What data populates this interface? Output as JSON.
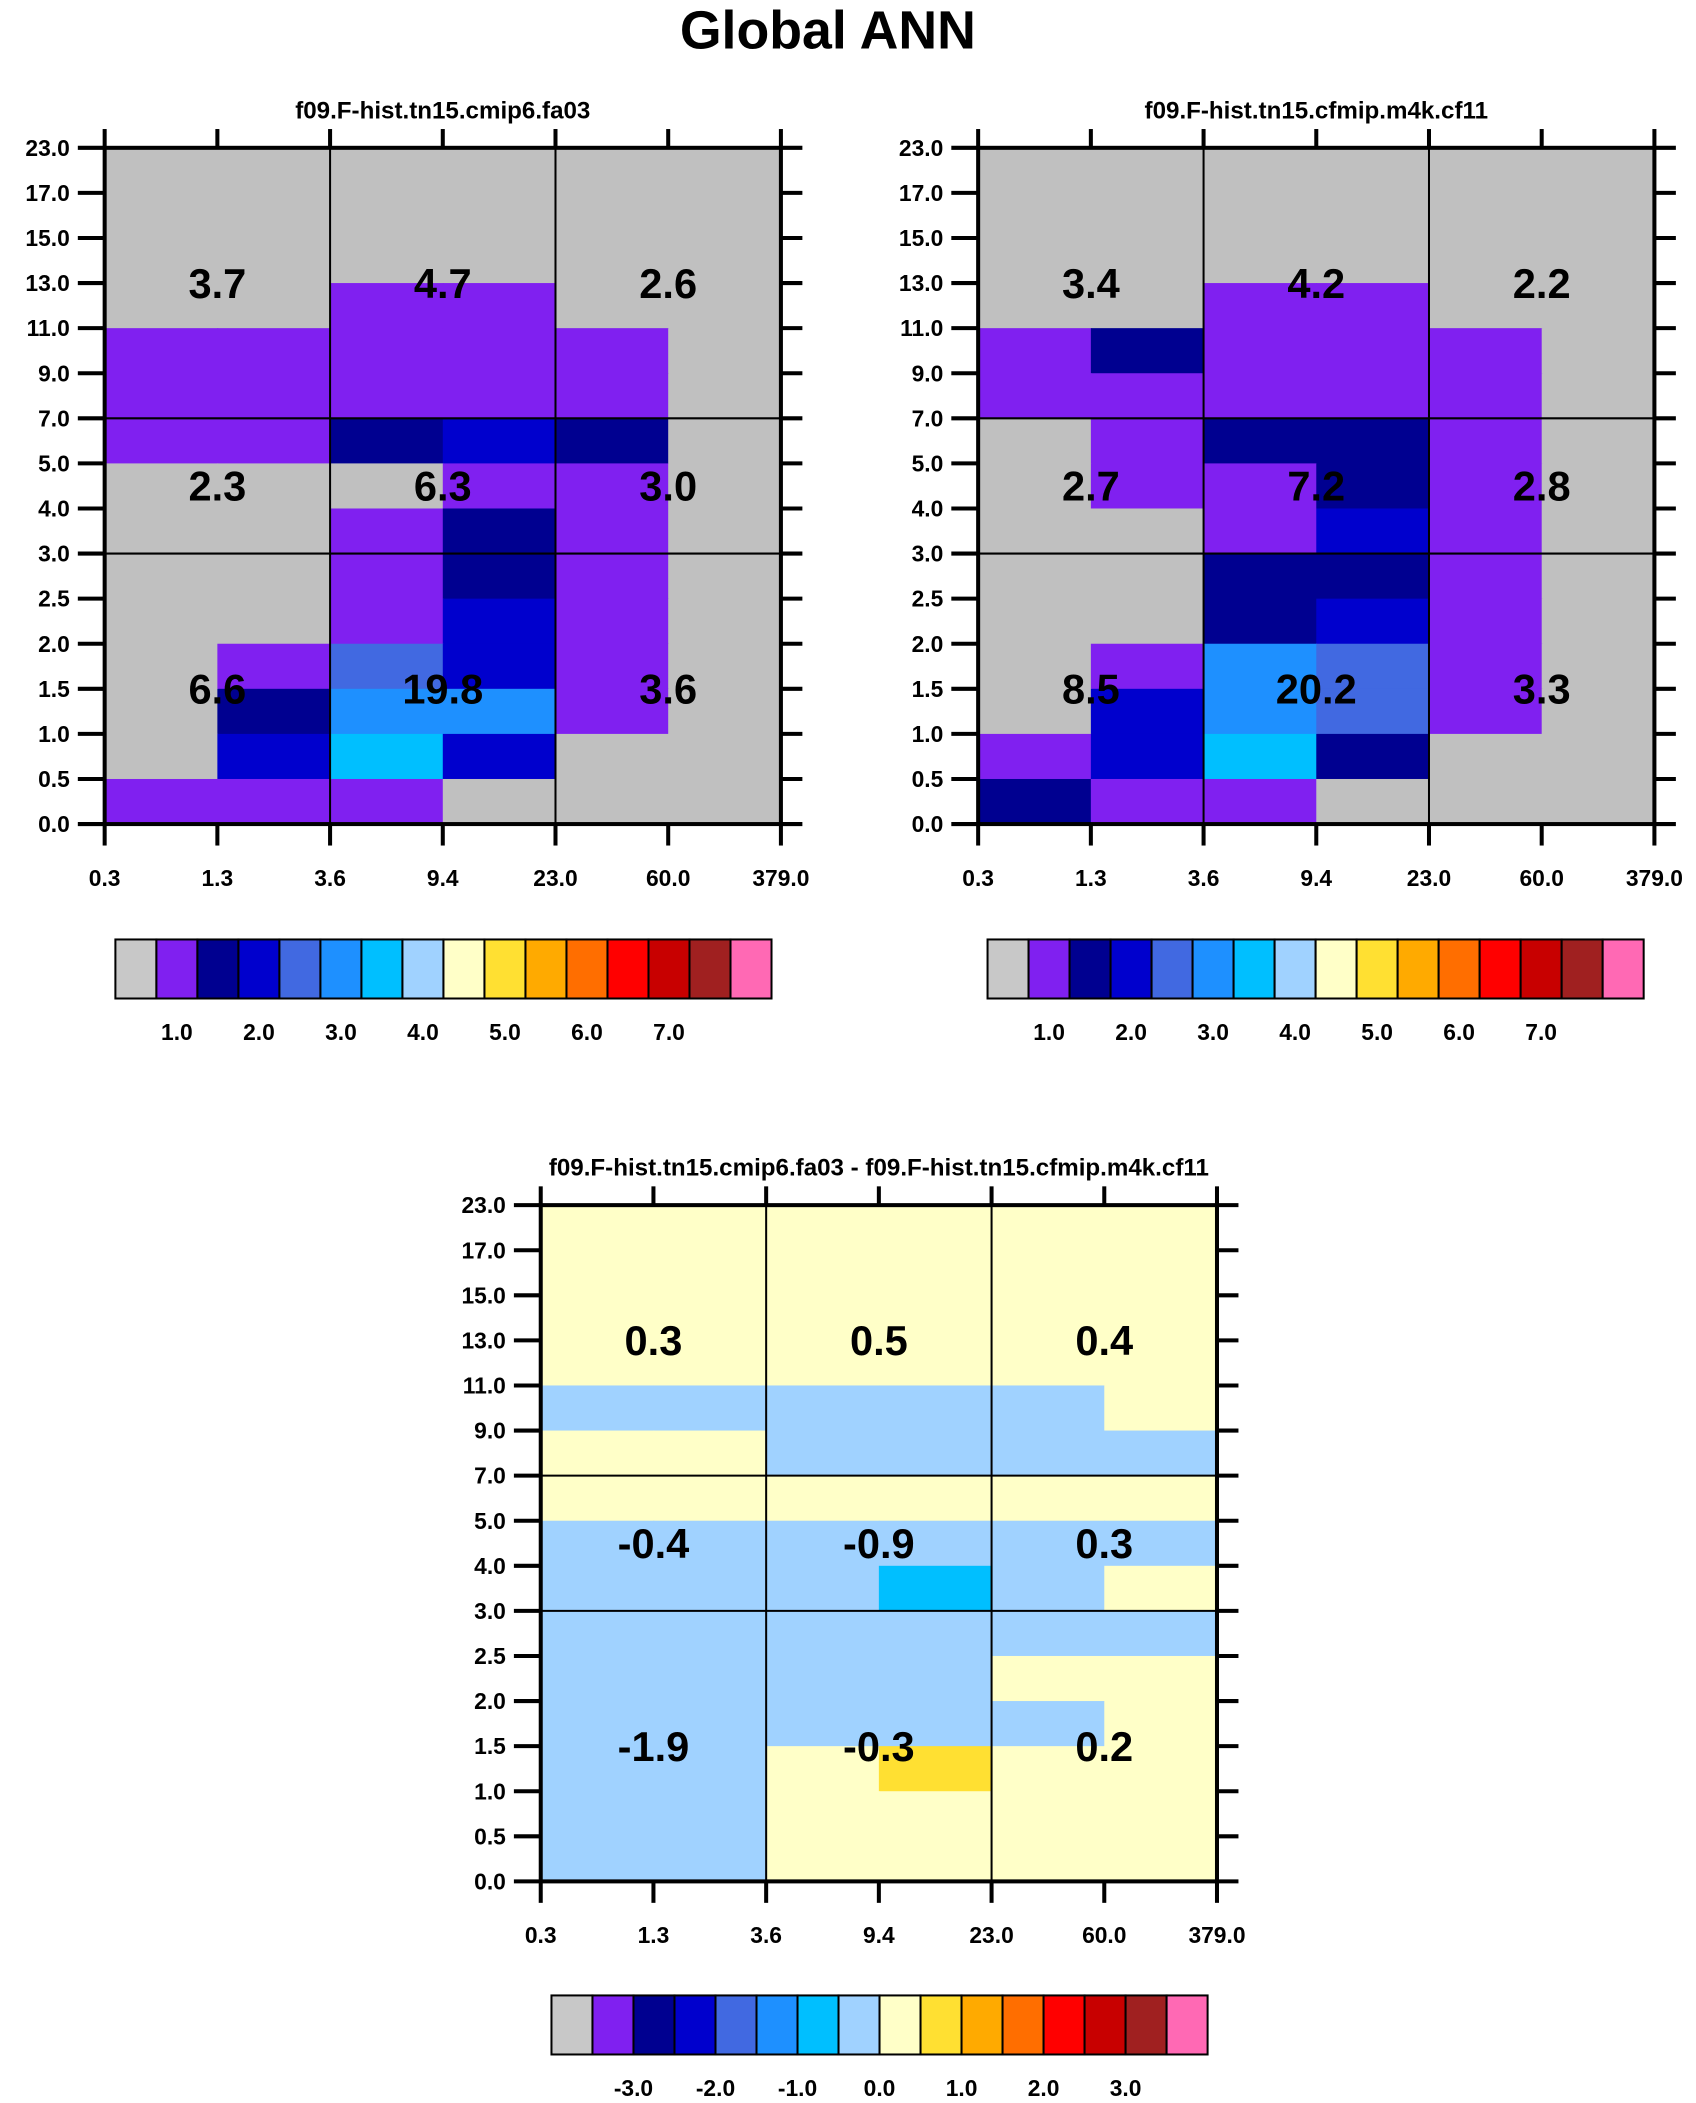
{
  "title": "Global ANN",
  "palette": [
    "#c0c0c0",
    "#8020f0",
    "#000090",
    "#0000cd",
    "#4169e1",
    "#1e90ff",
    "#00bfff",
    "#a0d2ff",
    "#ffffc8",
    "#ffe032",
    "#ffaa00",
    "#ff6e00",
    "#ff0000",
    "#c80000",
    "#a02020",
    "#ff69b4"
  ],
  "colorbar_box_palette_first": "#c8c8c8",
  "chart_data": [
    {
      "type": "heatmap",
      "title": "f09.F-hist.tn15.cmip6.fa03",
      "x_ticks": [
        "0.3",
        "1.3",
        "3.6",
        "9.4",
        "23.0",
        "60.0",
        "379.0"
      ],
      "y_ticks": [
        "23.0",
        "17.0",
        "15.0",
        "13.0",
        "11.0",
        "9.0",
        "7.0",
        "5.0",
        "4.0",
        "3.0",
        "2.5",
        "2.0",
        "1.5",
        "1.0",
        "0.5",
        "0.0"
      ],
      "cells_color_index_rows_top_to_bottom": [
        [
          0,
          0,
          0,
          0,
          0,
          0
        ],
        [
          0,
          0,
          0,
          0,
          0,
          0
        ],
        [
          0,
          0,
          0,
          0,
          0,
          0
        ],
        [
          0,
          0,
          1,
          1,
          0,
          0
        ],
        [
          1,
          1,
          1,
          1,
          1,
          0
        ],
        [
          1,
          1,
          1,
          1,
          1,
          0
        ],
        [
          1,
          1,
          2,
          3,
          2,
          0
        ],
        [
          0,
          0,
          0,
          1,
          1,
          0
        ],
        [
          0,
          0,
          1,
          2,
          1,
          0
        ],
        [
          0,
          0,
          1,
          2,
          1,
          0
        ],
        [
          0,
          0,
          1,
          3,
          1,
          0
        ],
        [
          0,
          1,
          4,
          3,
          1,
          0
        ],
        [
          0,
          2,
          5,
          5,
          1,
          0
        ],
        [
          0,
          3,
          6,
          3,
          0,
          0
        ],
        [
          1,
          1,
          1,
          0,
          0,
          0
        ]
      ],
      "box_values": [
        [
          "3.7",
          "4.7",
          "2.6"
        ],
        [
          "2.3",
          "6.3",
          "3.0"
        ],
        [
          "6.6",
          "19.8",
          "3.6"
        ]
      ],
      "colorbar_labels": [
        "1.0",
        "2.0",
        "3.0",
        "4.0",
        "5.0",
        "6.0",
        "7.0"
      ]
    },
    {
      "type": "heatmap",
      "title": "f09.F-hist.tn15.cfmip.m4k.cf11",
      "x_ticks": [
        "0.3",
        "1.3",
        "3.6",
        "9.4",
        "23.0",
        "60.0",
        "379.0"
      ],
      "y_ticks": [
        "23.0",
        "17.0",
        "15.0",
        "13.0",
        "11.0",
        "9.0",
        "7.0",
        "5.0",
        "4.0",
        "3.0",
        "2.5",
        "2.0",
        "1.5",
        "1.0",
        "0.5",
        "0.0"
      ],
      "cells_color_index_rows_top_to_bottom": [
        [
          0,
          0,
          0,
          0,
          0,
          0
        ],
        [
          0,
          0,
          0,
          0,
          0,
          0
        ],
        [
          0,
          0,
          0,
          0,
          0,
          0
        ],
        [
          0,
          0,
          1,
          1,
          0,
          0
        ],
        [
          1,
          2,
          1,
          1,
          1,
          0
        ],
        [
          1,
          1,
          1,
          1,
          1,
          0
        ],
        [
          0,
          1,
          2,
          2,
          1,
          0
        ],
        [
          0,
          1,
          1,
          2,
          1,
          0
        ],
        [
          0,
          0,
          1,
          3,
          1,
          0
        ],
        [
          0,
          0,
          2,
          2,
          1,
          0
        ],
        [
          0,
          0,
          2,
          3,
          1,
          0
        ],
        [
          0,
          1,
          5,
          4,
          1,
          0
        ],
        [
          0,
          3,
          5,
          4,
          1,
          0
        ],
        [
          1,
          3,
          6,
          2,
          0,
          0
        ],
        [
          2,
          1,
          1,
          0,
          0,
          0
        ]
      ],
      "box_values": [
        [
          "3.4",
          "4.2",
          "2.2"
        ],
        [
          "2.7",
          "7.2",
          "2.8"
        ],
        [
          "8.5",
          "20.2",
          "3.3"
        ]
      ],
      "colorbar_labels": [
        "1.0",
        "2.0",
        "3.0",
        "4.0",
        "5.0",
        "6.0",
        "7.0"
      ]
    },
    {
      "type": "heatmap",
      "title": "f09.F-hist.tn15.cmip6.fa03 - f09.F-hist.tn15.cfmip.m4k.cf11",
      "x_ticks": [
        "0.3",
        "1.3",
        "3.6",
        "9.4",
        "23.0",
        "60.0",
        "379.0"
      ],
      "y_ticks": [
        "23.0",
        "17.0",
        "15.0",
        "13.0",
        "11.0",
        "9.0",
        "7.0",
        "5.0",
        "4.0",
        "3.0",
        "2.5",
        "2.0",
        "1.5",
        "1.0",
        "0.5",
        "0.0"
      ],
      "cells_color_index_rows_top_to_bottom": [
        [
          8,
          8,
          8,
          8,
          8,
          8
        ],
        [
          8,
          8,
          8,
          8,
          8,
          8
        ],
        [
          8,
          8,
          8,
          8,
          8,
          8
        ],
        [
          8,
          8,
          8,
          8,
          8,
          8
        ],
        [
          7,
          7,
          7,
          7,
          7,
          8
        ],
        [
          8,
          8,
          7,
          7,
          7,
          7
        ],
        [
          8,
          8,
          8,
          8,
          8,
          8
        ],
        [
          7,
          7,
          7,
          7,
          7,
          7
        ],
        [
          7,
          7,
          7,
          6,
          7,
          8
        ],
        [
          7,
          7,
          7,
          7,
          7,
          7
        ],
        [
          7,
          7,
          7,
          7,
          8,
          8
        ],
        [
          7,
          7,
          7,
          7,
          7,
          8
        ],
        [
          7,
          7,
          8,
          9,
          8,
          8
        ],
        [
          7,
          7,
          8,
          8,
          8,
          8
        ],
        [
          7,
          7,
          8,
          8,
          8,
          8
        ]
      ],
      "box_values": [
        [
          "0.3",
          "0.5",
          "0.4"
        ],
        [
          "-0.4",
          "-0.9",
          "0.3"
        ],
        [
          "-1.9",
          "-0.3",
          "0.2"
        ]
      ],
      "colorbar_labels": [
        "-3.0",
        "-2.0",
        "-1.0",
        "0.0",
        "1.0",
        "2.0",
        "3.0"
      ]
    }
  ]
}
